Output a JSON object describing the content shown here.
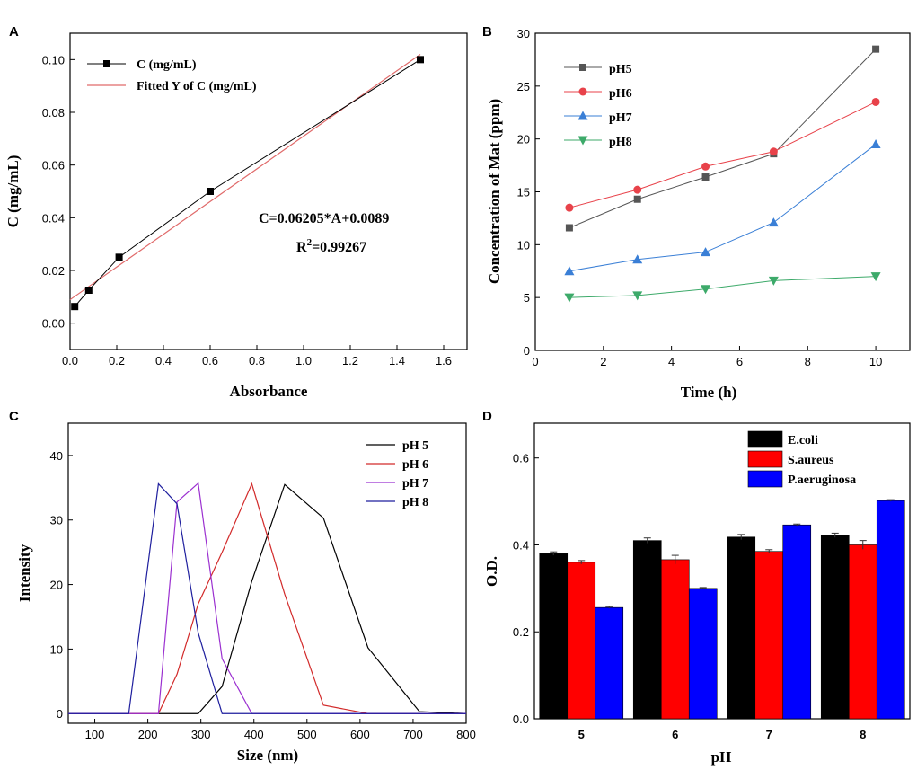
{
  "chart_data": [
    {
      "panel": "A",
      "type": "scatter",
      "xlabel": "Absorbance",
      "ylabel": "C (mg/mL)",
      "xlim": [
        0.0,
        1.7
      ],
      "ylim": [
        -0.01,
        0.11
      ],
      "xticks": [
        "0.0",
        "0.2",
        "0.4",
        "0.6",
        "0.8",
        "1.0",
        "1.2",
        "1.4",
        "1.6"
      ],
      "yticks": [
        "0.00",
        "0.02",
        "0.04",
        "0.06",
        "0.08",
        "0.10"
      ],
      "x": [
        0.02,
        0.08,
        0.21,
        0.6,
        1.5
      ],
      "y": [
        0.0063,
        0.0125,
        0.025,
        0.05,
        0.1
      ],
      "fit": {
        "slope": 0.06205,
        "intercept": 0.0089,
        "x_range": [
          0.0,
          1.5
        ]
      },
      "legend": [
        "C (mg/mL)",
        "Fitted Y of C (mg/mL)"
      ],
      "annotations": {
        "equation": "C=0.06205*A+0.0089",
        "r2_prefix": "R",
        "r2_sup": "2",
        "r2_value": "=0.99267"
      },
      "colors": {
        "points": "#000000",
        "fit": "#e06a6a"
      }
    },
    {
      "panel": "B",
      "type": "line",
      "xlabel": "Time (h)",
      "ylabel": "Concentration of Mat  (ppm)",
      "xlim": [
        0,
        11
      ],
      "ylim": [
        0,
        30
      ],
      "xticks": [
        "0",
        "2",
        "4",
        "6",
        "8",
        "10"
      ],
      "yticks": [
        "0",
        "5",
        "10",
        "15",
        "20",
        "25",
        "30"
      ],
      "x": [
        1,
        3,
        5,
        7,
        10
      ],
      "series": [
        {
          "name": "pH5",
          "values": [
            11.6,
            14.3,
            16.4,
            18.6,
            28.5
          ],
          "color": "#555555",
          "marker": "square"
        },
        {
          "name": "pH6",
          "values": [
            13.5,
            15.2,
            17.4,
            18.8,
            23.5
          ],
          "color": "#e8424a",
          "marker": "circle"
        },
        {
          "name": "pH7",
          "values": [
            7.5,
            8.6,
            9.3,
            12.1,
            19.5
          ],
          "color": "#3a7fd6",
          "marker": "triangle-up"
        },
        {
          "name": "pH8",
          "values": [
            5.0,
            5.2,
            5.8,
            6.6,
            7.0
          ],
          "color": "#3daa6a",
          "marker": "triangle-down"
        }
      ]
    },
    {
      "panel": "C",
      "type": "line",
      "xlabel": "Size (nm)",
      "ylabel": "Intensity",
      "xlim": [
        50,
        800
      ],
      "ylim": [
        -1.5,
        45
      ],
      "xticks": [
        "100",
        "200",
        "300",
        "400",
        "500",
        "600",
        "700",
        "800"
      ],
      "yticks": [
        "0",
        "10",
        "20",
        "30",
        "40"
      ],
      "series": [
        {
          "name": "pH 5",
          "color": "#000000",
          "x": [
            50,
            295,
            340,
            396,
            458,
            531,
            615,
            712,
            800
          ],
          "y": [
            0,
            0,
            4.2,
            20.5,
            35.5,
            30.3,
            10.2,
            0.3,
            0
          ]
        },
        {
          "name": "pH 6",
          "color": "#d22a2a",
          "x": [
            50,
            220,
            255,
            295,
            340,
            396,
            458,
            531,
            615,
            800
          ],
          "y": [
            0,
            0,
            6.1,
            17.0,
            25.0,
            35.6,
            18.5,
            1.3,
            0,
            0
          ]
        },
        {
          "name": "pH 7",
          "color": "#9b30d0",
          "x": [
            50,
            220,
            255,
            295,
            340,
            396,
            800
          ],
          "y": [
            0,
            0,
            32.8,
            35.7,
            8.5,
            0,
            0
          ]
        },
        {
          "name": "pH 8",
          "color": "#1f1f9e",
          "x": [
            50,
            164,
            220,
            255,
            295,
            340,
            800
          ],
          "y": [
            0,
            0,
            35.6,
            32.5,
            12.5,
            0,
            0
          ]
        }
      ]
    },
    {
      "panel": "D",
      "type": "bar",
      "xlabel": "pH",
      "ylabel": "O.D.",
      "ylim": [
        0.0,
        0.68
      ],
      "yticks": [
        "0.0",
        "0.2",
        "0.4",
        "0.6"
      ],
      "categories": [
        "5",
        "6",
        "7",
        "8"
      ],
      "series": [
        {
          "name": "E.coli",
          "color": "#000000",
          "values": [
            0.38,
            0.41,
            0.418,
            0.422
          ],
          "errors": [
            0.004,
            0.006,
            0.006,
            0.005
          ]
        },
        {
          "name": "S.aureus",
          "color": "#ff0000",
          "values": [
            0.36,
            0.366,
            0.385,
            0.4
          ],
          "errors": [
            0.004,
            0.01,
            0.004,
            0.01
          ]
        },
        {
          "name": "P.aeruginosa",
          "color": "#0000ff",
          "values": [
            0.256,
            0.3,
            0.446,
            0.502
          ],
          "errors": [
            0.002,
            0.002,
            0.002,
            0.002
          ]
        }
      ]
    }
  ]
}
